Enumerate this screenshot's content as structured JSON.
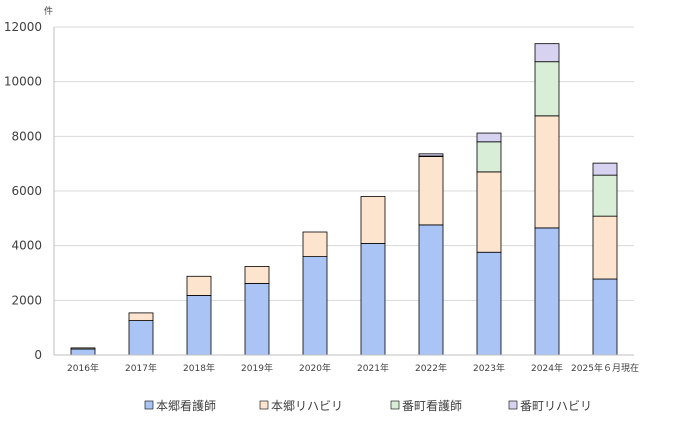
{
  "chart_data": {
    "type": "bar",
    "stacked": true,
    "unit_label": "件",
    "categories": [
      "2016年",
      "2017年",
      "2018年",
      "2019年",
      "2020年",
      "2021年",
      "2022年",
      "2023年",
      "2024年",
      "2025年６月現在"
    ],
    "series": [
      {
        "name": "本郷看護師",
        "color": "#a9c4f5",
        "values": [
          220,
          1260,
          2180,
          2620,
          3600,
          4080,
          4760,
          3760,
          4650,
          2780
        ]
      },
      {
        "name": "本郷リハビリ",
        "color": "#fde4cf",
        "values": [
          40,
          280,
          700,
          620,
          900,
          1720,
          2500,
          2940,
          4100,
          2300
        ]
      },
      {
        "name": "番町看護師",
        "color": "#d9eed6",
        "values": [
          0,
          0,
          0,
          0,
          0,
          0,
          20,
          1100,
          1980,
          1500
        ]
      },
      {
        "name": "番町リハビリ",
        "color": "#d6d2f0",
        "values": [
          0,
          0,
          0,
          0,
          0,
          0,
          80,
          320,
          660,
          440
        ]
      }
    ],
    "ylim": [
      0,
      12000
    ],
    "yticks": [
      0,
      2000,
      4000,
      6000,
      8000,
      10000,
      12000
    ],
    "grid": true,
    "legend_position": "bottom"
  }
}
